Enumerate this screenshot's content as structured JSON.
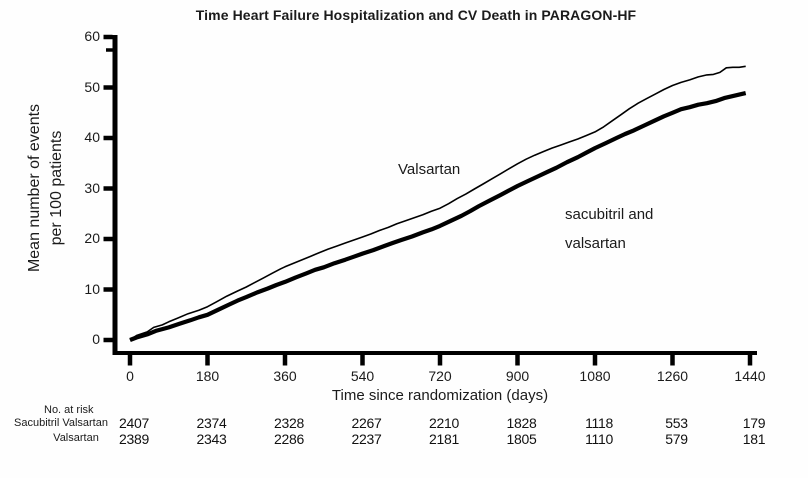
{
  "title": "Time Heart Failure Hospitalization and CV Death in PARAGON-HF",
  "chart_data": {
    "type": "line",
    "title": "Time Heart Failure Hospitalization and CV Death in PARAGON-HF",
    "xlabel": "Time since randomization (days)",
    "ylabel": "Mean number of events per 100 patients",
    "ylabel_lines": [
      "Mean number of events",
      "per 100 patients"
    ],
    "xlim": [
      0,
      1440
    ],
    "ylim": [
      0,
      60
    ],
    "x_ticks": [
      0,
      180,
      360,
      540,
      720,
      900,
      1080,
      1260,
      1440
    ],
    "y_ticks": [
      0,
      10,
      20,
      30,
      40,
      50,
      60
    ],
    "grid": false,
    "legend_position": "inline-annotations",
    "series": [
      {
        "name": "Valsartan",
        "style": "thin",
        "points": [
          [
            0,
            0
          ],
          [
            15,
            0.9
          ],
          [
            40,
            1.6
          ],
          [
            55,
            2.5
          ],
          [
            75,
            3.0
          ],
          [
            90,
            3.6
          ],
          [
            110,
            4.3
          ],
          [
            135,
            5.2
          ],
          [
            160,
            5.9
          ],
          [
            180,
            6.6
          ],
          [
            200,
            7.5
          ],
          [
            225,
            8.7
          ],
          [
            250,
            9.7
          ],
          [
            270,
            10.5
          ],
          [
            290,
            11.4
          ],
          [
            310,
            12.3
          ],
          [
            330,
            13.2
          ],
          [
            350,
            14.1
          ],
          [
            360,
            14.5
          ],
          [
            380,
            15.2
          ],
          [
            400,
            15.9
          ],
          [
            420,
            16.6
          ],
          [
            440,
            17.3
          ],
          [
            460,
            18.0
          ],
          [
            480,
            18.6
          ],
          [
            500,
            19.2
          ],
          [
            520,
            19.8
          ],
          [
            540,
            20.4
          ],
          [
            560,
            21.0
          ],
          [
            580,
            21.7
          ],
          [
            600,
            22.3
          ],
          [
            620,
            23.0
          ],
          [
            640,
            23.6
          ],
          [
            660,
            24.2
          ],
          [
            680,
            24.8
          ],
          [
            700,
            25.5
          ],
          [
            720,
            26.1
          ],
          [
            740,
            27.0
          ],
          [
            760,
            28.0
          ],
          [
            780,
            28.9
          ],
          [
            800,
            29.9
          ],
          [
            820,
            30.9
          ],
          [
            840,
            31.9
          ],
          [
            860,
            32.9
          ],
          [
            880,
            33.9
          ],
          [
            900,
            34.9
          ],
          [
            920,
            35.8
          ],
          [
            940,
            36.6
          ],
          [
            960,
            37.3
          ],
          [
            980,
            38.0
          ],
          [
            1000,
            38.6
          ],
          [
            1020,
            39.2
          ],
          [
            1040,
            39.8
          ],
          [
            1060,
            40.5
          ],
          [
            1080,
            41.2
          ],
          [
            1100,
            42.2
          ],
          [
            1120,
            43.4
          ],
          [
            1140,
            44.6
          ],
          [
            1160,
            45.8
          ],
          [
            1180,
            46.9
          ],
          [
            1200,
            47.8
          ],
          [
            1220,
            48.7
          ],
          [
            1240,
            49.6
          ],
          [
            1260,
            50.4
          ],
          [
            1280,
            51.0
          ],
          [
            1300,
            51.5
          ],
          [
            1320,
            52.1
          ],
          [
            1340,
            52.5
          ],
          [
            1355,
            52.6
          ],
          [
            1370,
            53.0
          ],
          [
            1385,
            53.9
          ],
          [
            1400,
            54.0
          ],
          [
            1415,
            54.0
          ],
          [
            1430,
            54.2
          ]
        ]
      },
      {
        "name": "sacubitril and valsartan",
        "style": "thick",
        "points": [
          [
            0,
            0
          ],
          [
            15,
            0.5
          ],
          [
            40,
            1.1
          ],
          [
            60,
            1.8
          ],
          [
            90,
            2.5
          ],
          [
            115,
            3.2
          ],
          [
            140,
            3.9
          ],
          [
            160,
            4.5
          ],
          [
            180,
            5.0
          ],
          [
            205,
            6.0
          ],
          [
            230,
            7.0
          ],
          [
            250,
            7.8
          ],
          [
            270,
            8.5
          ],
          [
            295,
            9.4
          ],
          [
            320,
            10.2
          ],
          [
            340,
            10.9
          ],
          [
            360,
            11.5
          ],
          [
            385,
            12.4
          ],
          [
            410,
            13.2
          ],
          [
            430,
            13.9
          ],
          [
            450,
            14.4
          ],
          [
            475,
            15.2
          ],
          [
            500,
            15.9
          ],
          [
            520,
            16.5
          ],
          [
            540,
            17.1
          ],
          [
            565,
            17.8
          ],
          [
            590,
            18.6
          ],
          [
            610,
            19.2
          ],
          [
            630,
            19.8
          ],
          [
            655,
            20.5
          ],
          [
            680,
            21.3
          ],
          [
            700,
            21.9
          ],
          [
            720,
            22.6
          ],
          [
            745,
            23.6
          ],
          [
            770,
            24.6
          ],
          [
            790,
            25.5
          ],
          [
            810,
            26.5
          ],
          [
            835,
            27.6
          ],
          [
            860,
            28.7
          ],
          [
            880,
            29.6
          ],
          [
            900,
            30.5
          ],
          [
            925,
            31.5
          ],
          [
            950,
            32.5
          ],
          [
            970,
            33.3
          ],
          [
            990,
            34.1
          ],
          [
            1015,
            35.2
          ],
          [
            1040,
            36.2
          ],
          [
            1060,
            37.1
          ],
          [
            1080,
            38.0
          ],
          [
            1105,
            39.0
          ],
          [
            1130,
            40.0
          ],
          [
            1150,
            40.8
          ],
          [
            1170,
            41.5
          ],
          [
            1195,
            42.5
          ],
          [
            1220,
            43.5
          ],
          [
            1240,
            44.3
          ],
          [
            1260,
            45.0
          ],
          [
            1280,
            45.7
          ],
          [
            1300,
            46.1
          ],
          [
            1320,
            46.6
          ],
          [
            1340,
            46.9
          ],
          [
            1360,
            47.3
          ],
          [
            1380,
            47.9
          ],
          [
            1400,
            48.3
          ],
          [
            1415,
            48.6
          ],
          [
            1430,
            48.9
          ]
        ]
      }
    ]
  },
  "annotations": {
    "valsartan_label": "Valsartan",
    "sacubitril_label_line1": "sacubitril and",
    "sacubitril_label_line2": "valsartan"
  },
  "at_risk_table": {
    "header": "No. at risk",
    "rows": [
      {
        "label": "Sacubitril Valsartan",
        "values": [
          2407,
          2374,
          2328,
          2267,
          2210,
          1828,
          1118,
          553,
          179
        ]
      },
      {
        "label": "Valsartan",
        "values": [
          2389,
          2343,
          2286,
          2237,
          2181,
          1805,
          1110,
          579,
          181
        ]
      }
    ]
  },
  "colors": {
    "line": "#000000",
    "background": "#ffffff",
    "text": "#1a1a1a"
  }
}
